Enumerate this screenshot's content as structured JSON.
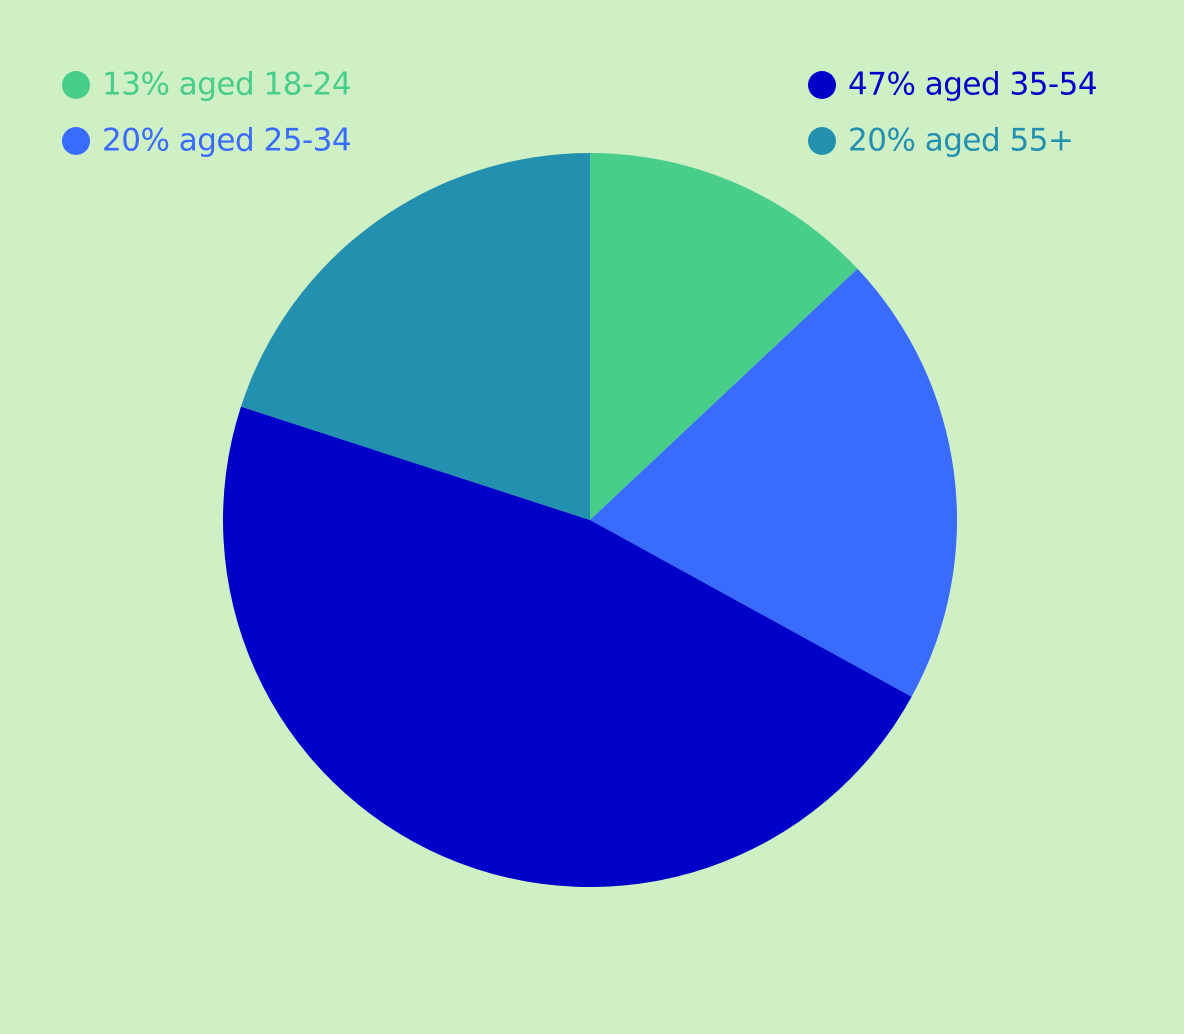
{
  "chart_data": {
    "type": "pie",
    "categories": [
      "13% aged 18-24",
      "20% aged 25-34",
      "47% aged 35-54",
      "20% aged 55+"
    ],
    "values": [
      13,
      20,
      47,
      20
    ],
    "colors": [
      "#48cd8a",
      "#3a6bff",
      "#0000c8",
      "#2490b0"
    ],
    "background": "#cef0c4"
  }
}
